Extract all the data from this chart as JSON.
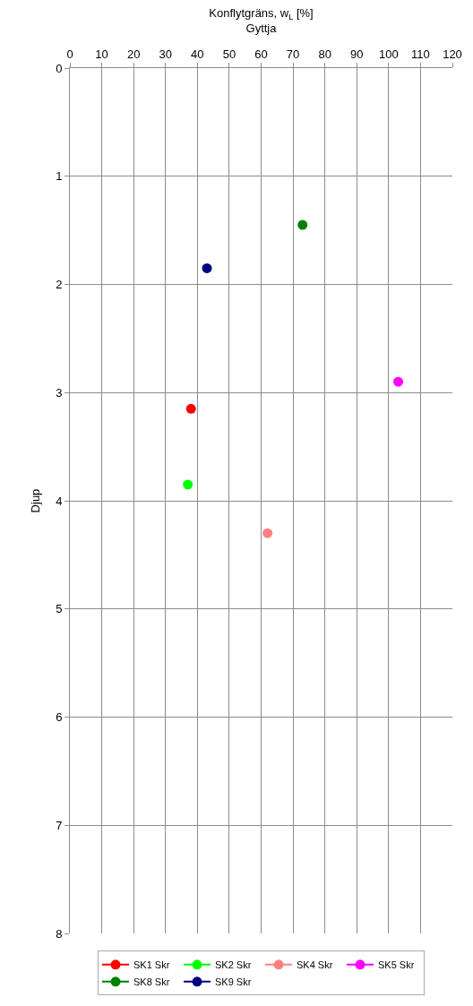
{
  "chart_data": {
    "type": "scatter",
    "title": "Konflytgräns, w$_{L}$ [%]",
    "subtitle": "Gyttja",
    "ylabel": "Djup",
    "series": [
      {
        "name": "SK1 Skr",
        "color": "#ff0000",
        "x": [
          38
        ],
        "values": [
          3.15
        ]
      },
      {
        "name": "SK2 Skr",
        "color": "#00ff00",
        "x": [
          37
        ],
        "values": [
          3.85
        ]
      },
      {
        "name": "SK4 Skr",
        "color": "#ff8080",
        "x": [
          62
        ],
        "values": [
          4.3
        ]
      },
      {
        "name": "SK5 Skr",
        "color": "#ff00ff",
        "x": [
          103
        ],
        "values": [
          2.9
        ]
      },
      {
        "name": "SK8 Skr",
        "color": "#008000",
        "x": [
          73
        ],
        "values": [
          1.45
        ]
      },
      {
        "name": "SK9 Skr",
        "color": "#000080",
        "x": [
          43
        ],
        "values": [
          1.85
        ]
      }
    ],
    "xlim": [
      0,
      120
    ],
    "xticks": [
      0,
      10,
      20,
      30,
      40,
      50,
      60,
      70,
      80,
      90,
      100,
      110,
      120
    ],
    "ylim": [
      8,
      0
    ],
    "yticks": [
      0,
      1,
      2,
      3,
      4,
      5,
      6,
      7,
      8
    ],
    "grid": true,
    "legend": "bottom",
    "marker": "circle"
  }
}
